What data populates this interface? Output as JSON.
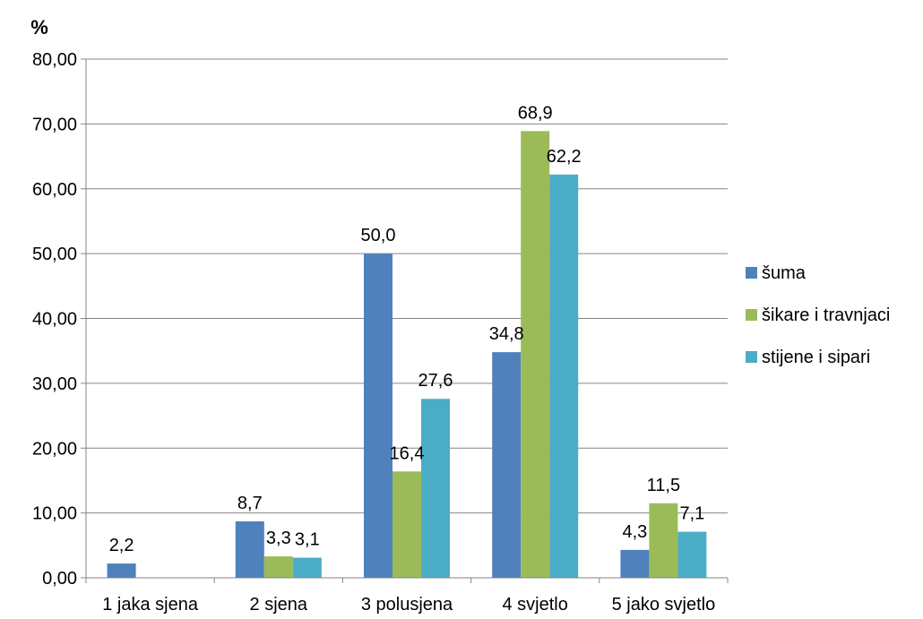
{
  "chart_data": {
    "type": "bar",
    "ylabel": "%",
    "categories": [
      "1 jaka sjena",
      "2 sjena",
      "3 polusjena",
      "4 svjetlo",
      "5 jako svjetlo"
    ],
    "series": [
      {
        "name": "šuma",
        "color": "#4F81BD",
        "values": [
          2.2,
          8.7,
          50.0,
          34.8,
          4.3
        ],
        "labels": [
          "2,2",
          "8,7",
          "50,0",
          "34,8",
          "4,3"
        ]
      },
      {
        "name": "šikare i travnjaci",
        "color": "#9BBB59",
        "values": [
          null,
          3.3,
          16.4,
          68.9,
          11.5
        ],
        "labels": [
          null,
          "3,3",
          "16,4",
          "68,9",
          "11,5"
        ]
      },
      {
        "name": "stijene i sipari",
        "color": "#4BACC6",
        "values": [
          null,
          3.1,
          27.6,
          62.2,
          7.1
        ],
        "labels": [
          null,
          "3,1",
          "27,6",
          "62,2",
          "7,1"
        ]
      }
    ],
    "ylim": [
      0,
      80
    ],
    "yticks": [
      "0,00",
      "10,00",
      "20,00",
      "30,00",
      "40,00",
      "50,00",
      "60,00",
      "70,00",
      "80,00"
    ],
    "grid": true,
    "legend_position": "right"
  }
}
